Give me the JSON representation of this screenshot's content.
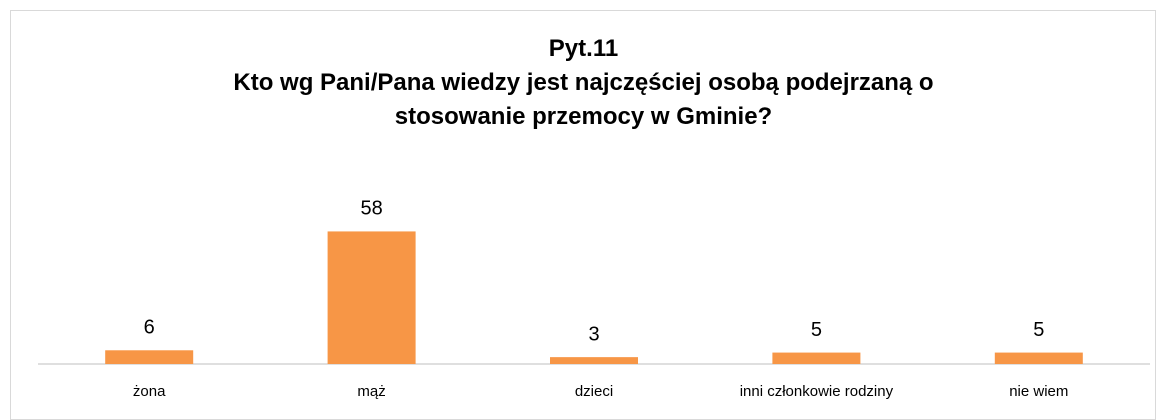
{
  "chart_data": {
    "type": "bar",
    "title": "Pyt.11\nKto wg Pani/Pana wiedzy jest najczęściej osobą podejrzaną o\nstosowanie przemocy w Gminie?",
    "categories": [
      "żona",
      "mąż",
      "dzieci",
      "inni członkowie rodziny",
      "nie wiem"
    ],
    "values": [
      6,
      58,
      3,
      5,
      5
    ],
    "color": "#f79646",
    "ylim": [
      0,
      70
    ]
  }
}
